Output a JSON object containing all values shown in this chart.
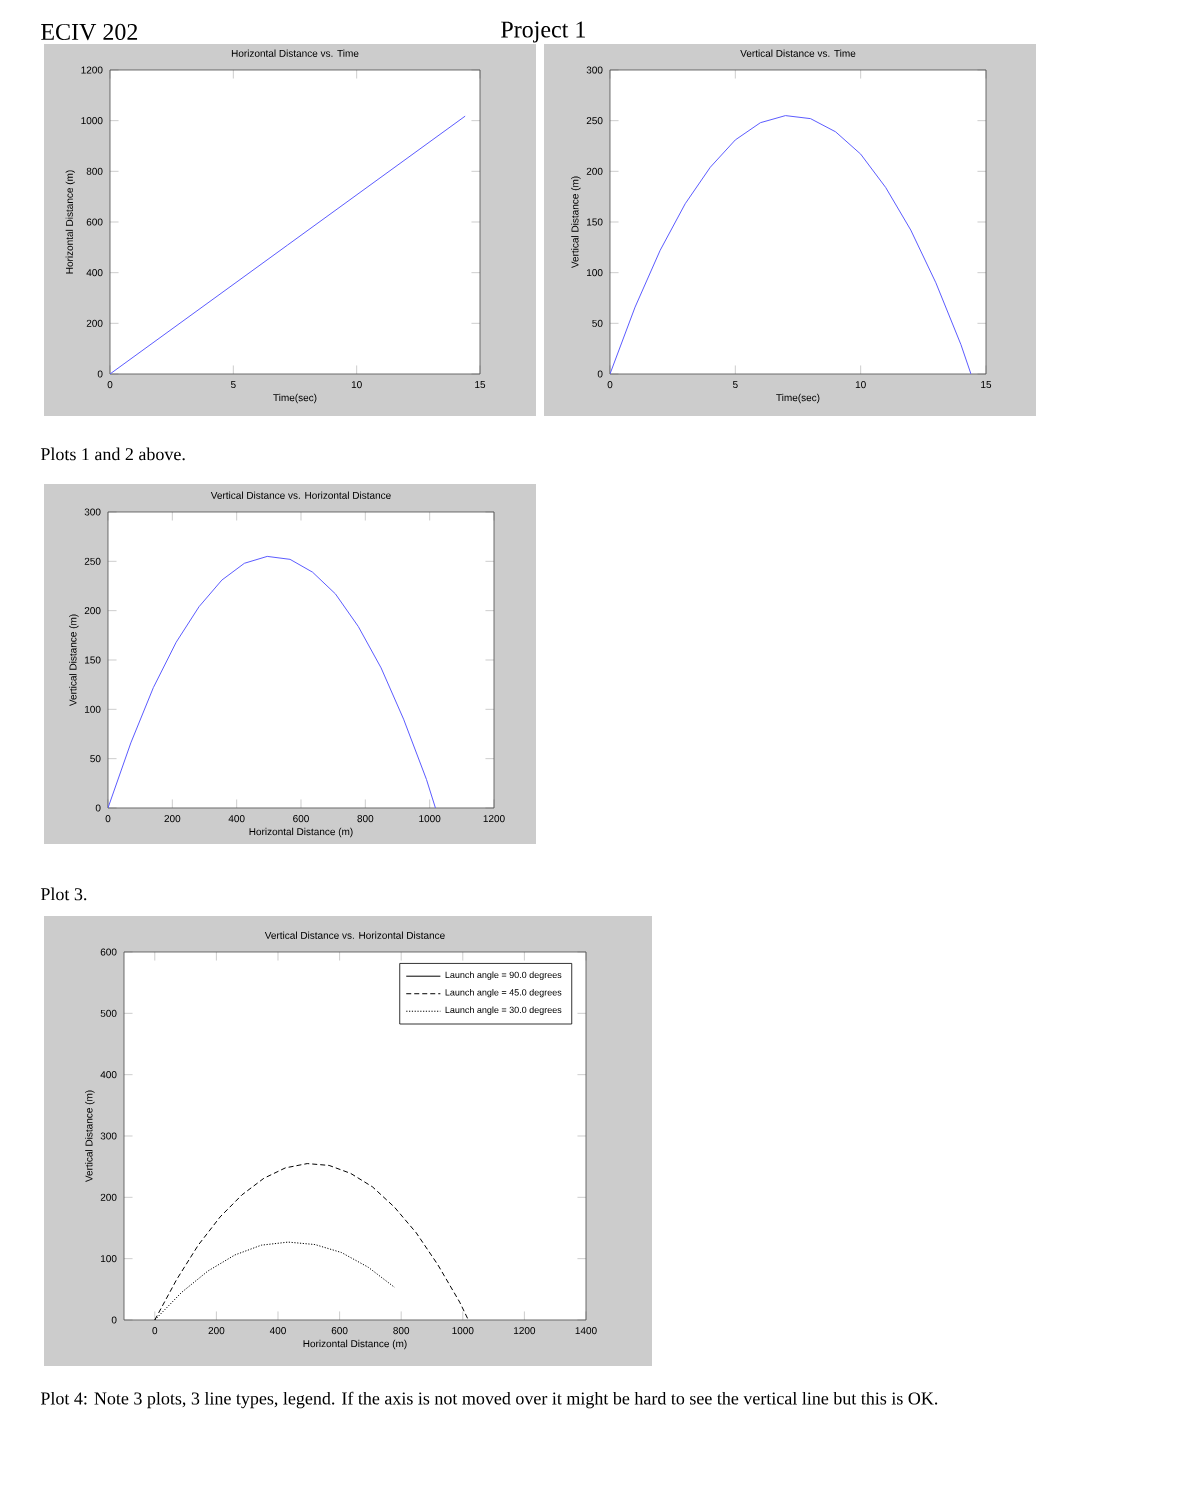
{
  "chart_data": [
    {
      "type": "line",
      "title": "Horizontal Distance vs. Time",
      "xlabel": "Time(sec)",
      "ylabel": "Horizontal Distance (m)",
      "annotations": [
        "ECIV 202",
        "Project 1"
      ],
      "series": [
        {
          "color": "#5a5aff",
          "x": [
            0,
            7.2,
            14.4
          ],
          "values": [
            0,
            509,
            1018
          ]
        }
      ],
      "xlim": [
        0,
        15
      ],
      "xticks": [
        0,
        5,
        10,
        15
      ],
      "ylim": [
        0,
        1200
      ],
      "yticks": [
        0,
        200,
        400,
        600,
        800,
        1000,
        1200
      ],
      "grid": false,
      "legend": false
    },
    {
      "type": "line",
      "title": "Vertical Distance vs. Time",
      "xlabel": "Time(sec)",
      "ylabel": "Vertical Distance (m)",
      "annotations": [
        "Plots 1 and 2 above."
      ],
      "series": [
        {
          "color": "#5a5aff",
          "x": [
            0,
            1,
            2,
            3,
            4,
            5,
            6,
            7,
            8,
            9,
            10,
            11,
            12,
            13,
            14,
            14.4
          ],
          "values": [
            0,
            66,
            122,
            168,
            204,
            231,
            248,
            255,
            252,
            239,
            217,
            184,
            142,
            90,
            29,
            0
          ]
        }
      ],
      "xlim": [
        0,
        15
      ],
      "xticks": [
        0,
        5,
        10,
        15
      ],
      "ylim": [
        0,
        300
      ],
      "yticks": [
        0,
        50,
        100,
        150,
        200,
        250,
        300
      ],
      "grid": false,
      "legend": false
    },
    {
      "type": "line",
      "title": "Vertical Distance vs. Horizontal Distance",
      "xlabel": "Horizontal Distance (m)",
      "ylabel": "Vertical Distance (m)",
      "annotations": [
        "Plot 3."
      ],
      "series": [
        {
          "color": "#5a5aff",
          "x": [
            0,
            71,
            141,
            212,
            283,
            354,
            424,
            495,
            566,
            636,
            707,
            778,
            849,
            919,
            990,
            1018
          ],
          "values": [
            0,
            66,
            122,
            168,
            204,
            231,
            248,
            255,
            252,
            239,
            217,
            184,
            142,
            90,
            29,
            0
          ]
        }
      ],
      "xlim": [
        0,
        1200
      ],
      "xticks": [
        0,
        200,
        400,
        600,
        800,
        1000,
        1200
      ],
      "ylim": [
        0,
        300
      ],
      "yticks": [
        0,
        50,
        100,
        150,
        200,
        250,
        300
      ],
      "grid": false,
      "legend": false
    },
    {
      "type": "line",
      "title": "Vertical Distance vs. Horizontal Distance",
      "xlabel": "Horizontal Distance (m)",
      "ylabel": "Vertical Distance (m)",
      "annotations": [
        "Plot 4: Note 3 plots, 3 line types, legend.  If the axis is not moved over it might be hard to see the vertical line but this is OK."
      ],
      "series": [
        {
          "name": "Launch angle = 90.0 degrees",
          "color": "#000000",
          "line_style": "solid",
          "values": [
            null,
            null
          ]
        },
        {
          "name": "Launch angle = 45.0 degrees",
          "color": "#000000",
          "line_style": "dashed",
          "x": [
            0,
            71,
            141,
            212,
            283,
            354,
            424,
            495,
            566,
            636,
            707,
            778,
            849,
            919,
            990,
            1018
          ],
          "values": [
            0,
            66,
            122,
            168,
            204,
            231,
            248,
            255,
            252,
            239,
            217,
            184,
            142,
            90,
            29,
            0
          ]
        },
        {
          "name": "Launch angle = 30.0 degrees",
          "color": "#000000",
          "line_style": "dotted",
          "x": [
            0,
            87,
            173,
            260,
            346,
            433,
            520,
            606,
            693,
            779
          ],
          "values": [
            0,
            45,
            80,
            106,
            122,
            127,
            123,
            110,
            86,
            53
          ]
        }
      ],
      "xlim": [
        -100,
        1400
      ],
      "xticks": [
        0,
        200,
        400,
        600,
        800,
        1000,
        1200,
        1400
      ],
      "ylim": [
        0,
        600
      ],
      "yticks": [
        0,
        100,
        200,
        300,
        400,
        500,
        600
      ],
      "grid": false,
      "legend": "top right"
    }
  ]
}
